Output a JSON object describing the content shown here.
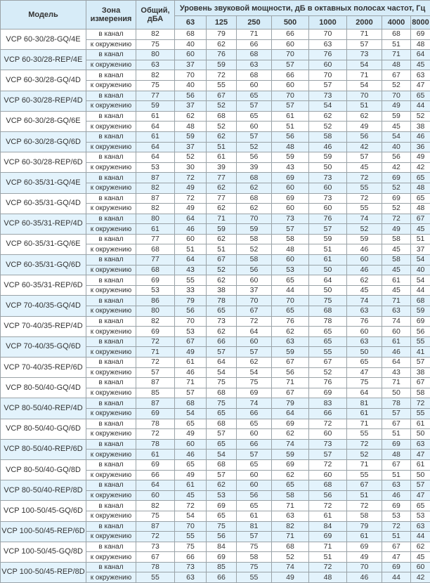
{
  "header": {
    "model": "Модель",
    "zone": "Зона измерения",
    "total": "Общий, дБА",
    "bands_title": "Уровень звуковой мощности, дБ в октавных полосах частот, Гц",
    "bands": [
      "63",
      "125",
      "250",
      "500",
      "1000",
      "2000",
      "4000",
      "8000"
    ]
  },
  "zones": [
    "в канал",
    "к окружению"
  ],
  "colors": {
    "header_bg": "#d7ecf8",
    "shade_bg": "#e3f3fc",
    "border": "#9aa3a8"
  },
  "rows": [
    {
      "model": "VCP 60-30/28-GQ/4E",
      "data": [
        [
          82,
          68,
          79,
          71,
          66,
          70,
          71,
          68,
          69
        ],
        [
          75,
          40,
          62,
          66,
          60,
          63,
          57,
          51,
          48
        ]
      ]
    },
    {
      "model": "VCP 60-30/28-REP/4E",
      "data": [
        [
          80,
          60,
          76,
          68,
          70,
          76,
          73,
          71,
          64
        ],
        [
          63,
          37,
          59,
          63,
          57,
          60,
          54,
          48,
          45
        ]
      ]
    },
    {
      "model": "VCP 60-30/28-GQ/4D",
      "data": [
        [
          82,
          70,
          72,
          68,
          66,
          70,
          71,
          67,
          63
        ],
        [
          75,
          40,
          55,
          60,
          60,
          57,
          54,
          52,
          47
        ]
      ]
    },
    {
      "model": "VCP 60-30/28-REP/4D",
      "data": [
        [
          77,
          56,
          67,
          65,
          70,
          73,
          70,
          70,
          65
        ],
        [
          59,
          37,
          52,
          57,
          57,
          54,
          51,
          49,
          44
        ]
      ]
    },
    {
      "model": "VCP 60-30/28-GQ/6E",
      "data": [
        [
          61,
          62,
          68,
          65,
          61,
          62,
          62,
          59,
          52
        ],
        [
          64,
          48,
          52,
          60,
          51,
          52,
          49,
          45,
          38
        ]
      ]
    },
    {
      "model": "VCP 60-30/28-GQ/6D",
      "data": [
        [
          61,
          59,
          62,
          57,
          56,
          58,
          56,
          54,
          46
        ],
        [
          64,
          37,
          51,
          52,
          48,
          46,
          42,
          40,
          36
        ]
      ]
    },
    {
      "model": "VCP 60-30/28-REP/6D",
      "data": [
        [
          64,
          52,
          61,
          56,
          59,
          59,
          57,
          56,
          49
        ],
        [
          53,
          30,
          39,
          39,
          43,
          50,
          45,
          42,
          42
        ]
      ]
    },
    {
      "model": "VCP 60-35/31-GQ/4E",
      "data": [
        [
          87,
          72,
          77,
          68,
          69,
          73,
          72,
          69,
          65
        ],
        [
          82,
          49,
          62,
          62,
          60,
          60,
          55,
          52,
          48
        ]
      ]
    },
    {
      "model": "VCP 60-35/31-GQ/4D",
      "data": [
        [
          87,
          72,
          77,
          68,
          69,
          73,
          72,
          69,
          65
        ],
        [
          82,
          49,
          62,
          62,
          60,
          60,
          55,
          52,
          48
        ]
      ]
    },
    {
      "model": "VCP 60-35/31-REP/4D",
      "data": [
        [
          80,
          64,
          71,
          70,
          73,
          76,
          74,
          72,
          67
        ],
        [
          61,
          46,
          59,
          59,
          57,
          57,
          52,
          49,
          45
        ]
      ]
    },
    {
      "model": "VCP 60-35/31-GQ/6E",
      "data": [
        [
          77,
          60,
          62,
          58,
          58,
          59,
          59,
          58,
          51
        ],
        [
          68,
          51,
          51,
          52,
          48,
          51,
          46,
          45,
          37
        ]
      ]
    },
    {
      "model": "VCP 60-35/31-GQ/6D",
      "data": [
        [
          77,
          64,
          67,
          58,
          60,
          61,
          60,
          58,
          54
        ],
        [
          68,
          43,
          52,
          56,
          53,
          50,
          46,
          45,
          40
        ]
      ]
    },
    {
      "model": "VCP 60-35/31-REP/6D",
      "data": [
        [
          69,
          55,
          62,
          60,
          65,
          64,
          62,
          61,
          54
        ],
        [
          53,
          33,
          38,
          37,
          44,
          50,
          45,
          45,
          44
        ]
      ]
    },
    {
      "model": "VCP 70-40/35-GQ/4D",
      "data": [
        [
          86,
          79,
          78,
          70,
          70,
          75,
          74,
          71,
          68
        ],
        [
          80,
          56,
          65,
          67,
          65,
          68,
          63,
          63,
          59
        ]
      ]
    },
    {
      "model": "VCP 70-40/35-REP/4D",
      "data": [
        [
          82,
          70,
          73,
          72,
          76,
          78,
          76,
          74,
          69
        ],
        [
          69,
          53,
          62,
          64,
          62,
          65,
          60,
          60,
          56
        ]
      ]
    },
    {
      "model": "VCP 70-40/35-GQ/6D",
      "data": [
        [
          72,
          67,
          66,
          60,
          63,
          65,
          63,
          61,
          55
        ],
        [
          71,
          49,
          57,
          57,
          59,
          55,
          50,
          46,
          41
        ]
      ]
    },
    {
      "model": "VCP 70-40/35-REP/6D",
      "data": [
        [
          72,
          61,
          64,
          62,
          67,
          67,
          65,
          64,
          57
        ],
        [
          57,
          46,
          54,
          54,
          56,
          52,
          47,
          43,
          38
        ]
      ]
    },
    {
      "model": "VCP 80-50/40-GQ/4D",
      "data": [
        [
          87,
          71,
          75,
          75,
          71,
          76,
          75,
          71,
          67
        ],
        [
          85,
          57,
          68,
          69,
          67,
          69,
          64,
          50,
          58
        ]
      ]
    },
    {
      "model": "VCP 80-50/40-REP/4D",
      "data": [
        [
          87,
          68,
          75,
          74,
          79,
          83,
          81,
          78,
          72
        ],
        [
          69,
          54,
          65,
          66,
          64,
          66,
          61,
          57,
          55
        ]
      ]
    },
    {
      "model": "VCP 80-50/40-GQ/6D",
      "data": [
        [
          78,
          65,
          68,
          65,
          69,
          72,
          71,
          67,
          61
        ],
        [
          72,
          49,
          57,
          60,
          62,
          60,
          55,
          51,
          50
        ]
      ]
    },
    {
      "model": "VCP 80-50/40-REP/6D",
      "data": [
        [
          78,
          60,
          65,
          66,
          74,
          73,
          72,
          69,
          63
        ],
        [
          61,
          46,
          54,
          57,
          59,
          57,
          52,
          48,
          47
        ]
      ]
    },
    {
      "model": "VCP 80-50/40-GQ/8D",
      "data": [
        [
          69,
          65,
          68,
          65,
          69,
          72,
          71,
          67,
          61
        ],
        [
          66,
          49,
          57,
          60,
          62,
          60,
          55,
          51,
          50
        ]
      ]
    },
    {
      "model": "VCP 80-50/40-REP/8D",
      "data": [
        [
          64,
          61,
          62,
          60,
          65,
          68,
          67,
          63,
          57
        ],
        [
          60,
          45,
          53,
          56,
          58,
          56,
          51,
          46,
          47
        ]
      ]
    },
    {
      "model": "VCP 100-50/45-GQ/6D",
      "data": [
        [
          82,
          72,
          69,
          65,
          71,
          72,
          72,
          69,
          65
        ],
        [
          75,
          54,
          65,
          61,
          63,
          61,
          58,
          53,
          53
        ]
      ]
    },
    {
      "model": "VCP 100-50/45-REP/6D",
      "data": [
        [
          87,
          70,
          75,
          81,
          82,
          84,
          79,
          72,
          63
        ],
        [
          72,
          55,
          56,
          57,
          71,
          69,
          61,
          51,
          44
        ]
      ]
    },
    {
      "model": "VCP 100-50/45-GQ/8D",
      "data": [
        [
          73,
          75,
          84,
          75,
          68,
          71,
          69,
          67,
          62
        ],
        [
          67,
          66,
          69,
          58,
          52,
          51,
          49,
          47,
          45
        ]
      ]
    },
    {
      "model": "VCP 100-50/45-REP/8D",
      "data": [
        [
          78,
          73,
          85,
          75,
          74,
          72,
          70,
          69,
          60
        ],
        [
          55,
          63,
          66,
          55,
          49,
          48,
          46,
          44,
          42
        ]
      ]
    }
  ]
}
